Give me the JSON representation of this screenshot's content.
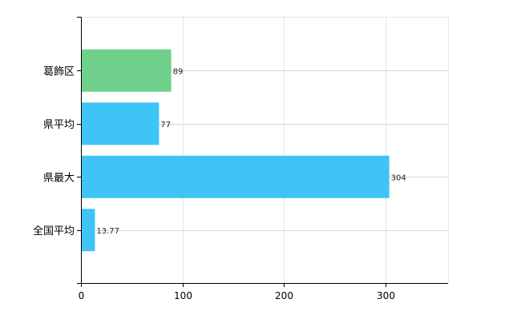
{
  "chart_data": {
    "type": "bar",
    "orientation": "horizontal",
    "categories": [
      "葛飾区",
      "県平均",
      "県最大",
      "全国平均"
    ],
    "values": [
      89,
      77,
      304,
      13.77
    ],
    "value_labels": [
      "89",
      "77",
      "304",
      "13.77"
    ],
    "bar_colors": [
      "#6fd08c",
      "#3ec4f5",
      "#3ec4f5",
      "#3ec4f5"
    ],
    "xlim": [
      0,
      362
    ],
    "xticks": [
      0,
      100,
      200,
      300
    ],
    "xtick_labels": [
      "0",
      "100",
      "200",
      "300"
    ],
    "title": "",
    "xlabel": "",
    "ylabel": "",
    "grid": true,
    "grid_style": "dotted",
    "legend": "none"
  }
}
